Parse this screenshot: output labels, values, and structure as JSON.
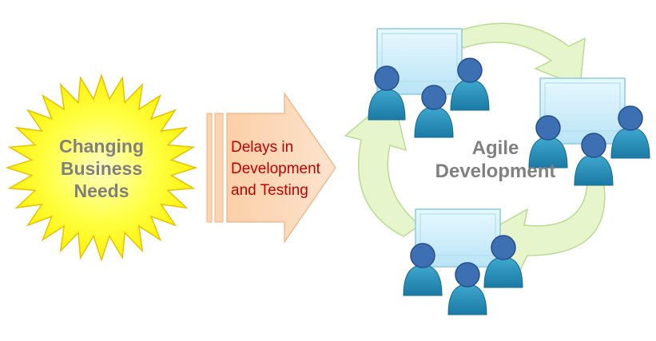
{
  "burst": {
    "line1": "Changing",
    "line2": "Business",
    "line3": "Needs",
    "fill": "#ffff00",
    "stroke": "#f2c200"
  },
  "arrow": {
    "line1": "Delays in",
    "line2": "Development",
    "line3": "and Testing",
    "fill": "#fcd5b4",
    "text_color": "#c00000"
  },
  "cycle": {
    "line1": "Agile",
    "line2": "Development",
    "arrow_color": "#e6f5cc",
    "person_color": "#2c8fb8",
    "monitor_color": "#cfeefb"
  }
}
